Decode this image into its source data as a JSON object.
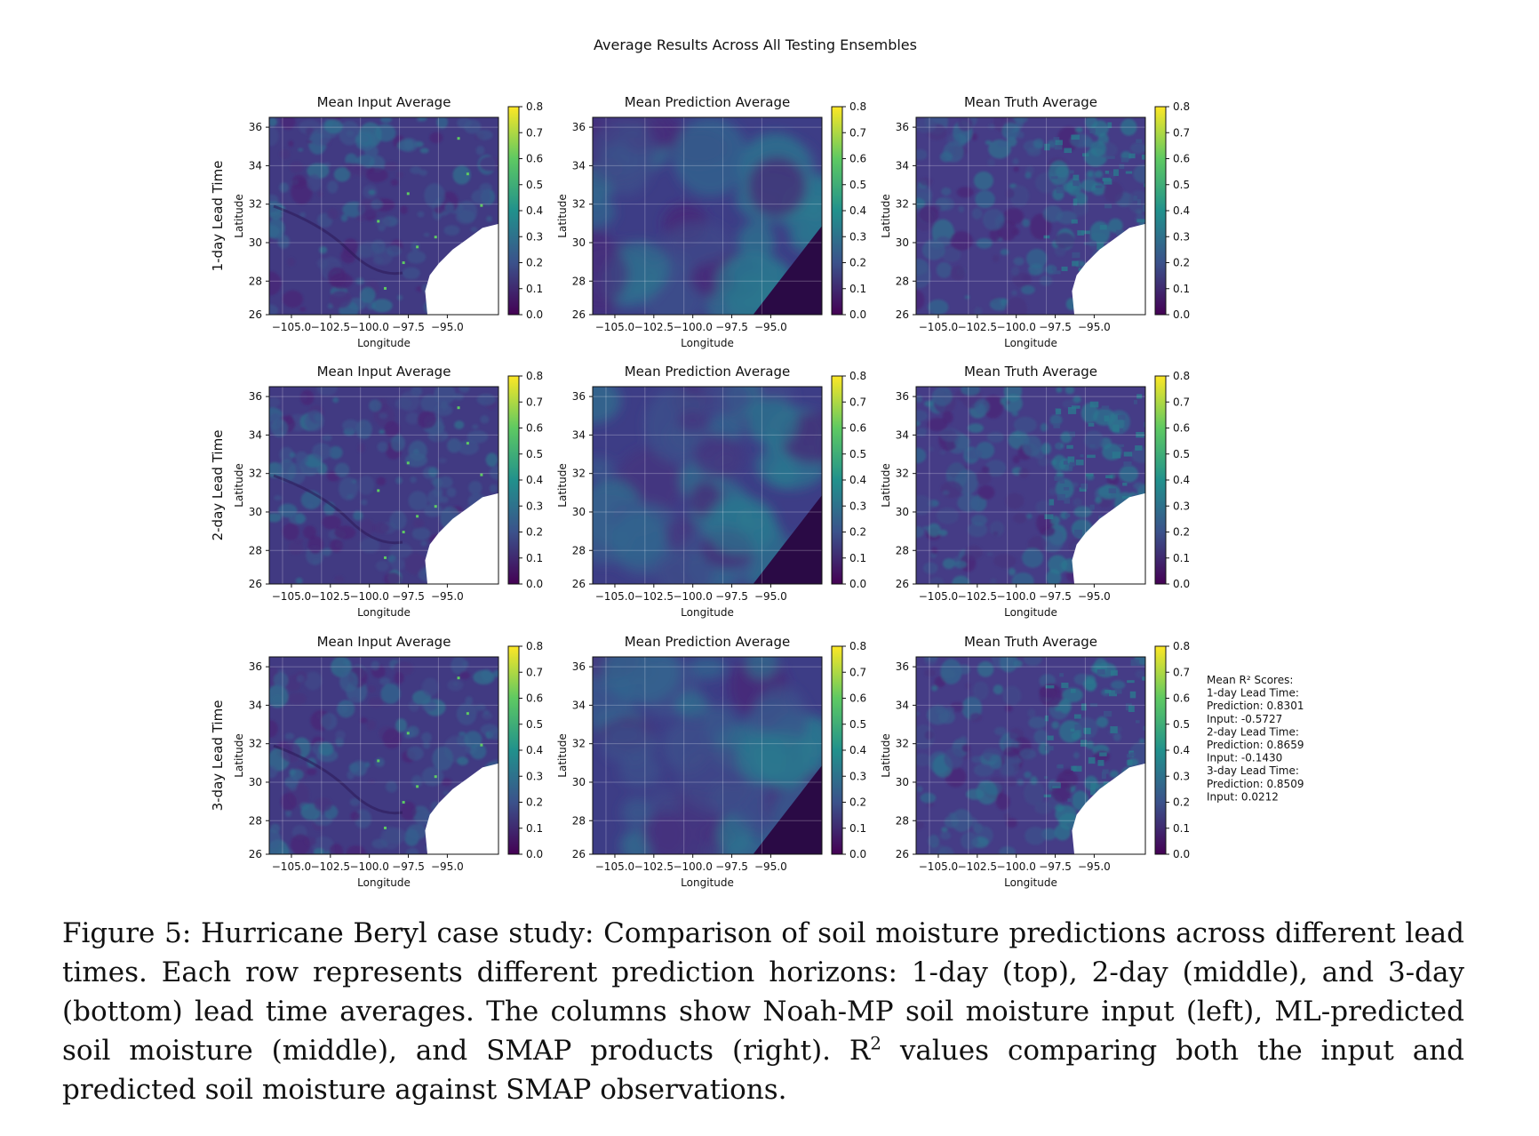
{
  "figure": {
    "suptitle": "Average Results Across All Testing Ensembles",
    "row_labels": [
      "1-day Lead Time",
      "2-day Lead Time",
      "3-day Lead Time"
    ],
    "column_titles": [
      "Mean Input Average",
      "Mean Prediction Average",
      "Mean Truth Average"
    ],
    "xlabel": "Longitude",
    "ylabel": "Latitude",
    "x_ticks": [
      "−105.0",
      "−102.5",
      "−100.0",
      "−97.5",
      "−95.0"
    ],
    "y_ticks": [
      "36",
      "34",
      "32",
      "30",
      "28",
      "26"
    ],
    "colorbar_ticks": [
      "0.8",
      "0.7",
      "0.6",
      "0.5",
      "0.4",
      "0.3",
      "0.2",
      "0.1",
      "0.0"
    ],
    "r2_box": [
      "Mean R² Scores:",
      "1-day Lead Time:",
      "  Prediction: 0.8301",
      "  Input: -0.5727",
      "2-day Lead Time:",
      "  Prediction: 0.8659",
      "  Input: -0.1430",
      "3-day Lead Time:",
      "  Prediction: 0.8509",
      "  Input: 0.0212"
    ],
    "colormap": {
      "low": "#440154",
      "mid": "#3b528b",
      "mid2": "#21918c",
      "high2": "#5ec962",
      "high": "#fde725"
    }
  },
  "caption": {
    "label": "Figure 5:",
    "text_before_sup": "Hurricane Beryl case study: Comparison of soil moisture predictions across different lead times. Each row represents different prediction horizons: 1-day (top), 2-day (middle), and 3-day (bottom) lead time averages. The columns show Noah-MP soil moisture input (left), ML-predicted soil moisture (middle), and SMAP products (right). R",
    "sup": "2",
    "text_after_sup": " values comparing both the input and predicted soil moisture against SMAP observations."
  }
}
